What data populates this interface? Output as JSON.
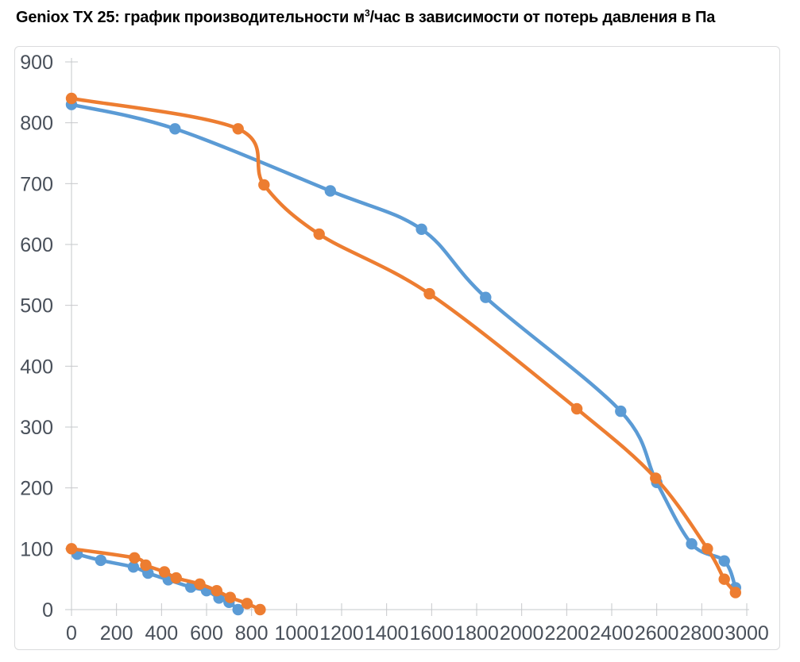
{
  "title": {
    "prefix": "Geniox TX 25: график производительности м",
    "superscript": "3",
    "suffix": "/час в зависимости от потерь давления в Па"
  },
  "chart_data": {
    "type": "line",
    "title": "Geniox TX 25: график производительности м³/час в зависимости от потерь давления в Па",
    "xlabel": "",
    "ylabel": "",
    "x_axis": {
      "min": 0,
      "max": 3000,
      "tick_step": 200
    },
    "y_axis": {
      "min": 0,
      "max": 900,
      "tick_step": 100
    },
    "grid": false,
    "legend": false,
    "smooth": true,
    "marker": "circle",
    "background_color": "#FFFFFF",
    "border_color": "#DADBDD",
    "axis_color": "#C6C8CB",
    "label_color": "#49505A",
    "title_color": "#000000",
    "series": [
      {
        "id": "blue-upper",
        "color": "#5B9BD5",
        "points": [
          [
            0,
            830
          ],
          [
            460,
            790
          ],
          [
            1150,
            688
          ],
          [
            1555,
            625
          ],
          [
            1840,
            513
          ],
          [
            2440,
            326
          ],
          [
            2600,
            209
          ],
          [
            2755,
            108
          ],
          [
            2900,
            80
          ],
          [
            2950,
            36
          ]
        ]
      },
      {
        "id": "blue-lower",
        "color": "#5B9BD5",
        "points": [
          [
            25,
            91
          ],
          [
            130,
            81
          ],
          [
            275,
            70
          ],
          [
            340,
            60
          ],
          [
            430,
            49
          ],
          [
            530,
            37
          ],
          [
            600,
            31
          ],
          [
            655,
            19
          ],
          [
            700,
            12
          ],
          [
            740,
            0
          ]
        ]
      },
      {
        "id": "orange-upper",
        "color": "#ED7D31",
        "points": [
          [
            0,
            840
          ],
          [
            740,
            790
          ],
          [
            855,
            698
          ],
          [
            1100,
            617
          ],
          [
            1590,
            519
          ],
          [
            2245,
            330
          ],
          [
            2595,
            216
          ],
          [
            2825,
            100
          ],
          [
            2900,
            50
          ],
          [
            2950,
            28
          ]
        ]
      },
      {
        "id": "orange-lower",
        "color": "#ED7D31",
        "points": [
          [
            0,
            100
          ],
          [
            280,
            85
          ],
          [
            330,
            73
          ],
          [
            413,
            62
          ],
          [
            465,
            52
          ],
          [
            570,
            42
          ],
          [
            645,
            31
          ],
          [
            705,
            20
          ],
          [
            780,
            10
          ],
          [
            838,
            0
          ]
        ]
      }
    ]
  }
}
